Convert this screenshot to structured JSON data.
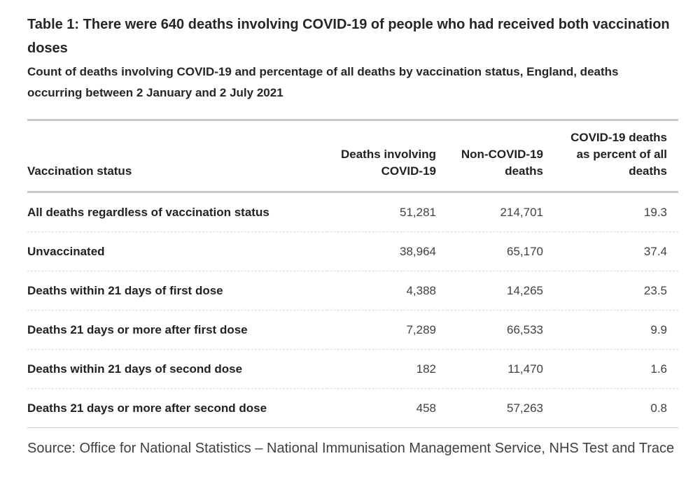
{
  "title": "Table 1: There were 640 deaths involving COVID-19 of people who had received both vaccination doses",
  "subtitle": "Count of deaths involving COVID-19 and percentage of all deaths by vaccination status, England, deaths occurring between 2 January and 2 July 2021",
  "table": {
    "columns": [
      "Vaccination status",
      "Deaths involving COVID-19",
      "Non-COVID-19 deaths",
      "COVID-19 deaths as percent of all deaths"
    ],
    "rows": [
      {
        "label": "All deaths regardless of vaccination status",
        "covid": "51,281",
        "non_covid": "214,701",
        "percent": "19.3"
      },
      {
        "label": "Unvaccinated",
        "covid": "38,964",
        "non_covid": "65,170",
        "percent": "37.4"
      },
      {
        "label": "Deaths within 21 days of first dose",
        "covid": "4,388",
        "non_covid": "14,265",
        "percent": "23.5"
      },
      {
        "label": "Deaths 21 days or more after first dose",
        "covid": "7,289",
        "non_covid": "66,533",
        "percent": "9.9"
      },
      {
        "label": "Deaths within 21 days of second dose",
        "covid": "182",
        "non_covid": "11,470",
        "percent": "1.6"
      },
      {
        "label": "Deaths 21 days or more after second dose",
        "covid": "458",
        "non_covid": "57,263",
        "percent": "0.8"
      }
    ]
  },
  "source": "Source: Office for National Statistics – National Immunisation Management Service, NHS Test and Trace",
  "colors": {
    "text": "#222222",
    "number_text": "#414042",
    "border_strong": "#c9c9c9",
    "border_dashed": "#dadada",
    "background": "#ffffff"
  }
}
